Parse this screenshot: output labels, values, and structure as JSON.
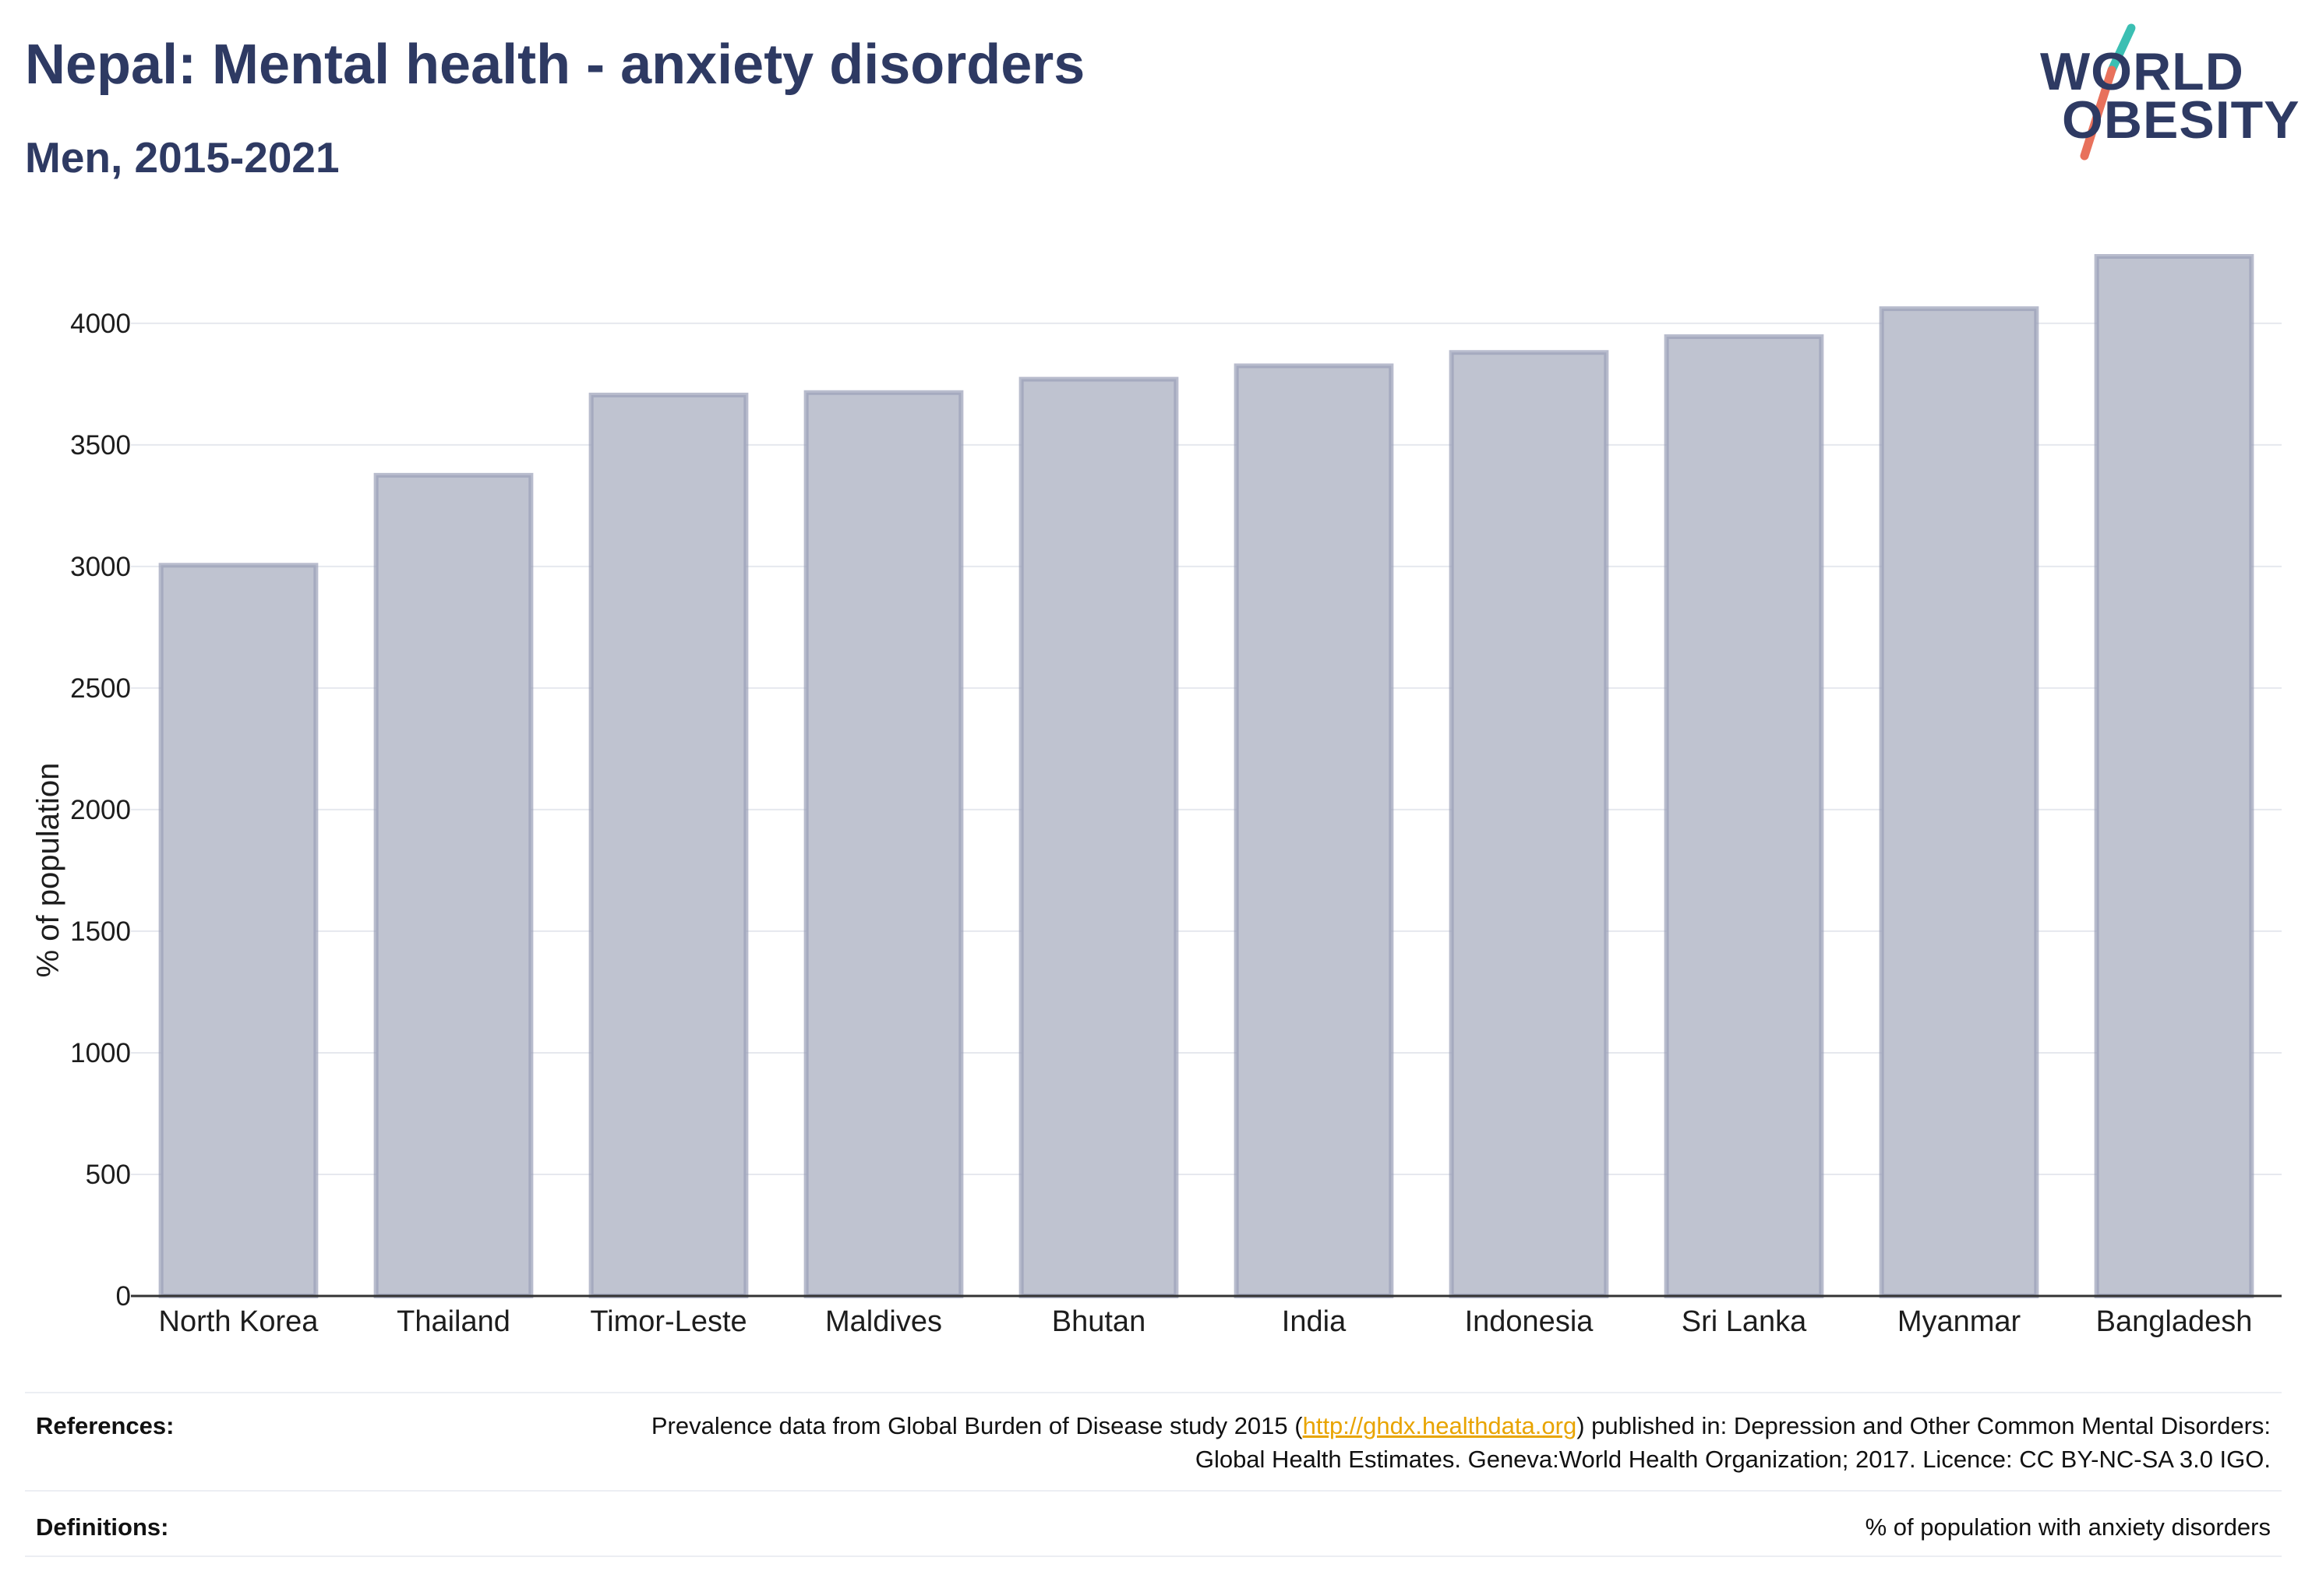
{
  "header": {
    "title": "Nepal: Mental health - anxiety disorders",
    "subtitle": "Men, 2015-2021"
  },
  "logo": {
    "line1": "WORLD",
    "line2": "OBESITY",
    "colors": {
      "text": "#2e3a63",
      "slash_top": "#3bbfb3",
      "slash_bottom": "#e8715c"
    }
  },
  "colors": {
    "bar_fill": "#bfc3d0",
    "bar_stroke": "#9aa0b8",
    "grid": "#e6e8ee",
    "axis": "#333333"
  },
  "chart_data": {
    "type": "bar",
    "categories": [
      "North Korea",
      "Thailand",
      "Timor-Leste",
      "Maldives",
      "Bhutan",
      "India",
      "Indonesia",
      "Sri Lanka",
      "Myanmar",
      "Bangladesh"
    ],
    "values": [
      3005,
      3375,
      3705,
      3715,
      3770,
      3825,
      3880,
      3945,
      4060,
      4275
    ],
    "ylabel": "% of population",
    "xlabel": "",
    "ylim": [
      0,
      4400
    ],
    "yticks": [
      0,
      500,
      1000,
      1500,
      2000,
      2500,
      3000,
      3500,
      4000
    ],
    "grid": true,
    "legend": "none"
  },
  "footer": {
    "references_label": "References:",
    "references_text_before": "Prevalence data from Global Burden of Disease study 2015 (",
    "references_link": "http://ghdx.healthdata.org",
    "references_text_after": ") published in: Depression and Other Common Mental Disorders: Global Health Estimates. Geneva:World Health Organization; 2017. Licence: CC BY-NC-SA 3.0 IGO.",
    "definitions_label": "Definitions:",
    "definitions_text": "% of population with anxiety disorders"
  }
}
